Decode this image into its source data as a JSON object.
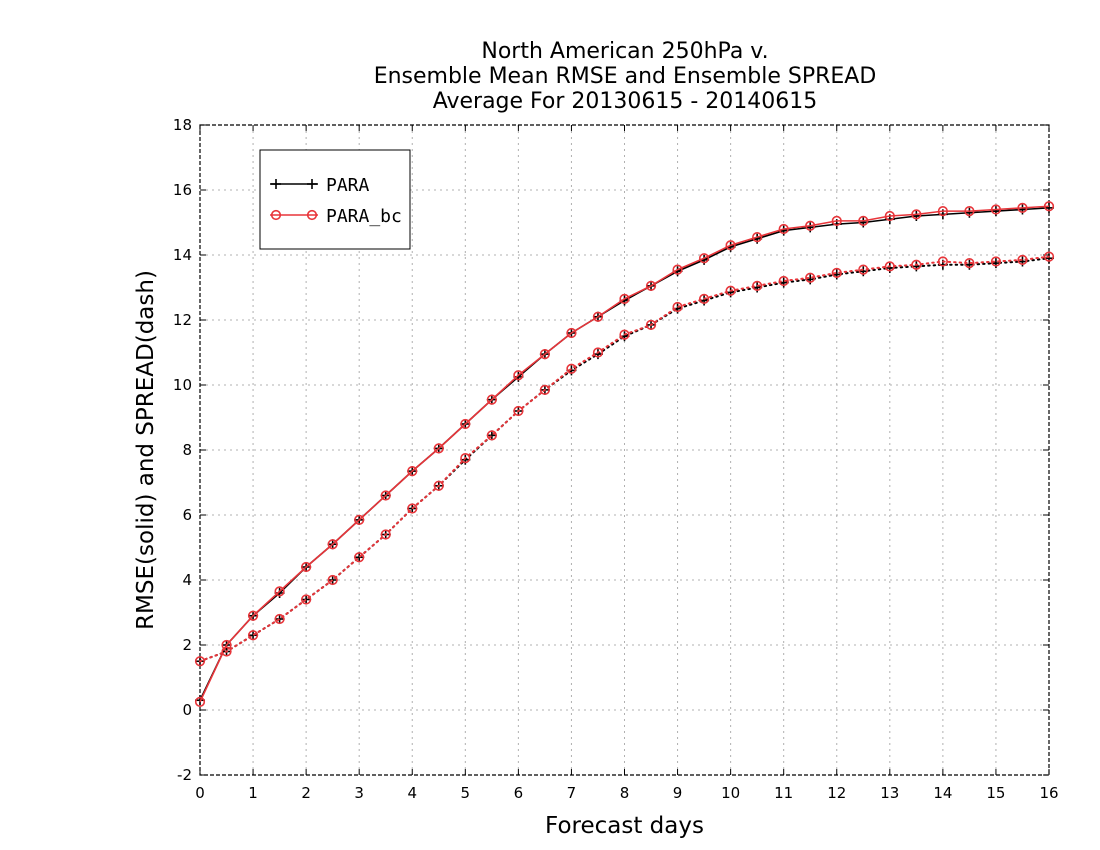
{
  "chart_data": {
    "type": "line",
    "title_lines": [
      "North American 250hPa v.",
      "Ensemble Mean RMSE and Ensemble SPREAD",
      "Average For 20130615 - 20140615"
    ],
    "xlabel": "Forecast days",
    "ylabel": "RMSE(solid) and SPREAD(dash)",
    "xlim": [
      0,
      16
    ],
    "ylim": [
      -2,
      18
    ],
    "x_ticks": [
      0,
      1,
      2,
      3,
      4,
      5,
      6,
      7,
      8,
      9,
      10,
      11,
      12,
      13,
      14,
      15,
      16
    ],
    "y_ticks": [
      -2,
      0,
      2,
      4,
      6,
      8,
      10,
      12,
      14,
      16,
      18
    ],
    "grid": true,
    "legend_position": "top-left",
    "x": [
      0,
      0.5,
      1,
      1.5,
      2,
      2.5,
      3,
      3.5,
      4,
      4.5,
      5,
      5.5,
      6,
      6.5,
      7,
      7.5,
      8,
      8.5,
      9,
      9.5,
      10,
      10.5,
      11,
      11.5,
      12,
      12.5,
      13,
      13.5,
      14,
      14.5,
      15,
      15.5,
      16
    ],
    "series": [
      {
        "name": "PARA",
        "metric": "RMSE",
        "style": "solid",
        "marker": "plus",
        "color": "#000000",
        "values": [
          0.3,
          2.0,
          2.9,
          3.6,
          4.4,
          5.1,
          5.85,
          6.6,
          7.35,
          8.05,
          8.8,
          9.55,
          10.25,
          10.95,
          11.6,
          12.1,
          12.6,
          13.05,
          13.5,
          13.85,
          14.25,
          14.5,
          14.75,
          14.85,
          14.95,
          15.0,
          15.1,
          15.2,
          15.25,
          15.3,
          15.35,
          15.4,
          15.45
        ]
      },
      {
        "name": "PARA_bc",
        "metric": "RMSE",
        "style": "solid",
        "marker": "circle",
        "color": "#e8353a",
        "values": [
          0.25,
          2.0,
          2.9,
          3.65,
          4.4,
          5.1,
          5.85,
          6.6,
          7.35,
          8.05,
          8.8,
          9.55,
          10.3,
          10.95,
          11.6,
          12.1,
          12.65,
          13.05,
          13.55,
          13.9,
          14.3,
          14.55,
          14.8,
          14.9,
          15.05,
          15.05,
          15.2,
          15.25,
          15.35,
          15.35,
          15.4,
          15.45,
          15.5
        ]
      },
      {
        "name": "PARA",
        "metric": "SPREAD",
        "style": "dotted",
        "marker": "plus",
        "color": "#000000",
        "values": [
          1.5,
          1.8,
          2.3,
          2.8,
          3.4,
          4.0,
          4.7,
          5.4,
          6.2,
          6.9,
          7.7,
          8.45,
          9.2,
          9.85,
          10.45,
          10.95,
          11.5,
          11.85,
          12.35,
          12.6,
          12.85,
          13.0,
          13.15,
          13.25,
          13.4,
          13.5,
          13.6,
          13.65,
          13.7,
          13.7,
          13.75,
          13.8,
          13.9
        ]
      },
      {
        "name": "PARA_bc",
        "metric": "SPREAD",
        "style": "dotted",
        "marker": "circle",
        "color": "#e8353a",
        "values": [
          1.5,
          1.8,
          2.3,
          2.8,
          3.4,
          4.0,
          4.7,
          5.4,
          6.2,
          6.9,
          7.75,
          8.45,
          9.2,
          9.85,
          10.5,
          11.0,
          11.55,
          11.85,
          12.4,
          12.65,
          12.9,
          13.05,
          13.2,
          13.3,
          13.45,
          13.55,
          13.65,
          13.7,
          13.8,
          13.75,
          13.8,
          13.85,
          13.95
        ]
      }
    ],
    "legend": [
      {
        "label": "PARA",
        "marker": "plus",
        "color": "#000000"
      },
      {
        "label": "PARA_bc",
        "marker": "circle",
        "color": "#e8353a"
      }
    ]
  }
}
